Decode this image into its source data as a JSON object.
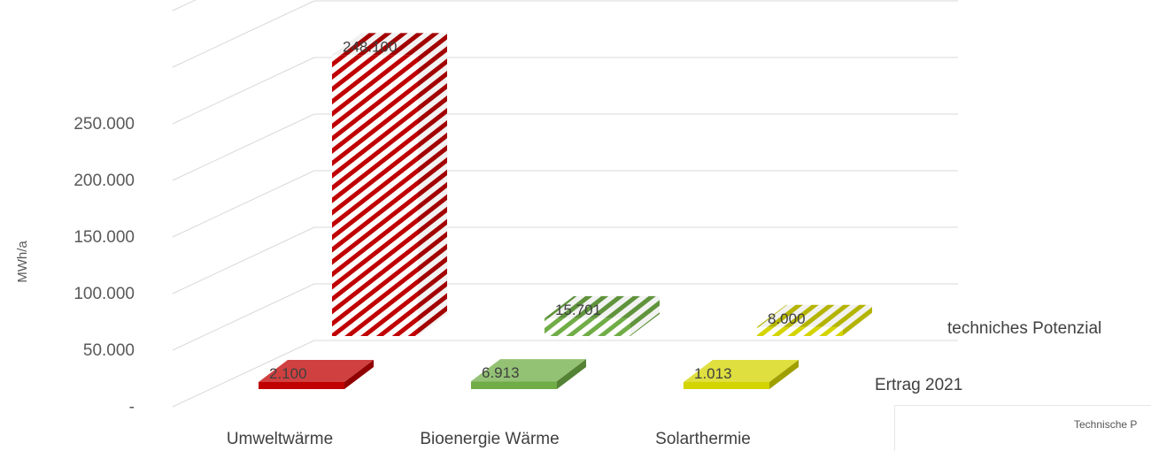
{
  "chart_data": {
    "type": "bar",
    "subtype": "3d-column",
    "title": "",
    "ylabel": "MWh/a",
    "ylim": [
      0,
      350000
    ],
    "yticks": [
      0,
      50000,
      100000,
      150000,
      200000,
      250000
    ],
    "ytick_labels": [
      "-",
      "50.000",
      "100.000",
      "150.000",
      "200.000",
      "250.000"
    ],
    "categories": [
      "Umweltwärme",
      "Bioenergie Wärme",
      "Solarthermie"
    ],
    "series": [
      {
        "name": "techniches Potenzial",
        "values": [
          248100,
          15701,
          8000
        ],
        "value_labels": [
          "248.100",
          "15.701",
          "8.000"
        ],
        "pattern": "diagonal-stripes"
      },
      {
        "name": "Ertrag 2021",
        "values": [
          2100,
          6913,
          1013
        ],
        "value_labels": [
          "2.100",
          "6.913",
          "1.013"
        ],
        "pattern": "solid"
      }
    ],
    "colors": {
      "Umweltwärme": "#c00000",
      "Bioenergie Wärme": "#70ad47",
      "Solarthermie": "#d4d400"
    },
    "grid": true
  },
  "overlay": {
    "snippet_text": "Technische P"
  }
}
